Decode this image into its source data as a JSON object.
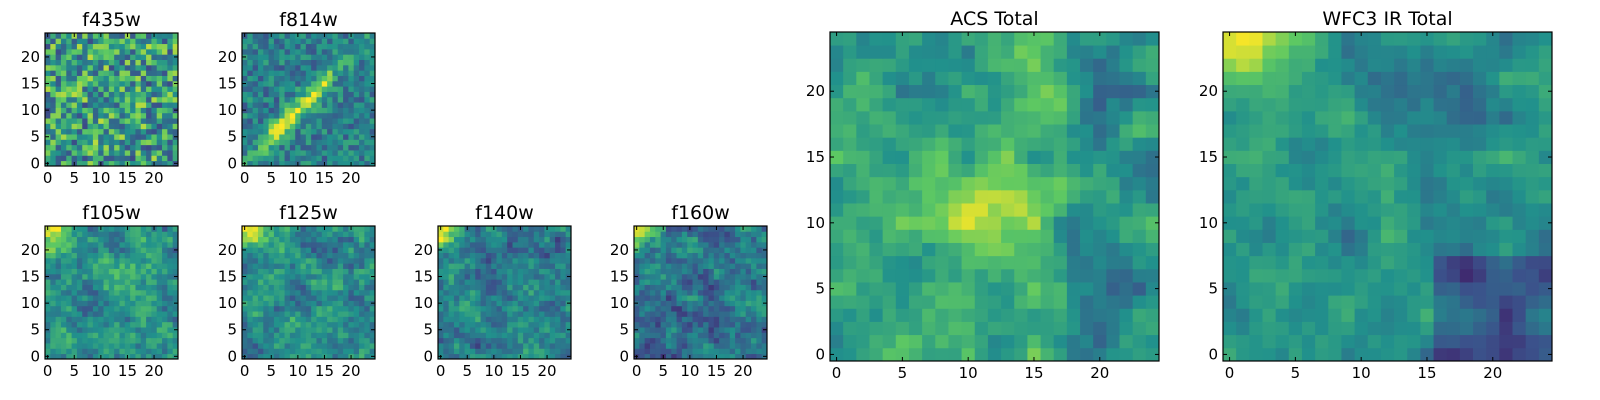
{
  "chart_data": [
    {
      "type": "heatmap",
      "title": "f435w",
      "xlim": [
        0,
        24
      ],
      "ylim": [
        0,
        24
      ],
      "xticks": [
        "0",
        "5",
        "10",
        "15",
        "20"
      ],
      "yticks": [
        "0",
        "5",
        "10",
        "15",
        "20"
      ],
      "colormap": "viridis"
    },
    {
      "type": "heatmap",
      "title": "f814w",
      "xlim": [
        0,
        24
      ],
      "ylim": [
        0,
        24
      ],
      "xticks": [
        "0",
        "5",
        "10",
        "15",
        "20"
      ],
      "yticks": [
        "0",
        "5",
        "10",
        "15",
        "20"
      ],
      "colormap": "viridis"
    },
    {
      "type": "heatmap",
      "title": "f105w",
      "xlim": [
        0,
        24
      ],
      "ylim": [
        0,
        24
      ],
      "xticks": [
        "0",
        "5",
        "10",
        "15",
        "20"
      ],
      "yticks": [
        "0",
        "5",
        "10",
        "15",
        "20"
      ],
      "colormap": "viridis"
    },
    {
      "type": "heatmap",
      "title": "f125w",
      "xlim": [
        0,
        24
      ],
      "ylim": [
        0,
        24
      ],
      "xticks": [
        "0",
        "5",
        "10",
        "15",
        "20"
      ],
      "yticks": [
        "0",
        "5",
        "10",
        "15",
        "20"
      ],
      "colormap": "viridis"
    },
    {
      "type": "heatmap",
      "title": "f140w",
      "xlim": [
        0,
        24
      ],
      "ylim": [
        0,
        24
      ],
      "xticks": [
        "0",
        "5",
        "10",
        "15",
        "20"
      ],
      "yticks": [
        "0",
        "5",
        "10",
        "15",
        "20"
      ],
      "colormap": "viridis"
    },
    {
      "type": "heatmap",
      "title": "f160w",
      "xlim": [
        0,
        24
      ],
      "ylim": [
        0,
        24
      ],
      "xticks": [
        "0",
        "5",
        "10",
        "15",
        "20"
      ],
      "yticks": [
        "0",
        "5",
        "10",
        "15",
        "20"
      ],
      "colormap": "viridis"
    },
    {
      "type": "heatmap",
      "title": "ACS Total",
      "xlim": [
        0,
        24
      ],
      "ylim": [
        0,
        24
      ],
      "xticks": [
        "0",
        "5",
        "10",
        "15",
        "20"
      ],
      "yticks": [
        "0",
        "5",
        "10",
        "15",
        "20"
      ],
      "colormap": "viridis"
    },
    {
      "type": "heatmap",
      "title": "WFC3 IR Total",
      "xlim": [
        0,
        24
      ],
      "ylim": [
        0,
        24
      ],
      "xticks": [
        "0",
        "5",
        "10",
        "15",
        "20"
      ],
      "yticks": [
        "0",
        "5",
        "10",
        "15",
        "20"
      ],
      "colormap": "viridis"
    }
  ],
  "colormap_stops": [
    "#440154",
    "#3b528b",
    "#21918c",
    "#5ec962",
    "#fde725"
  ]
}
